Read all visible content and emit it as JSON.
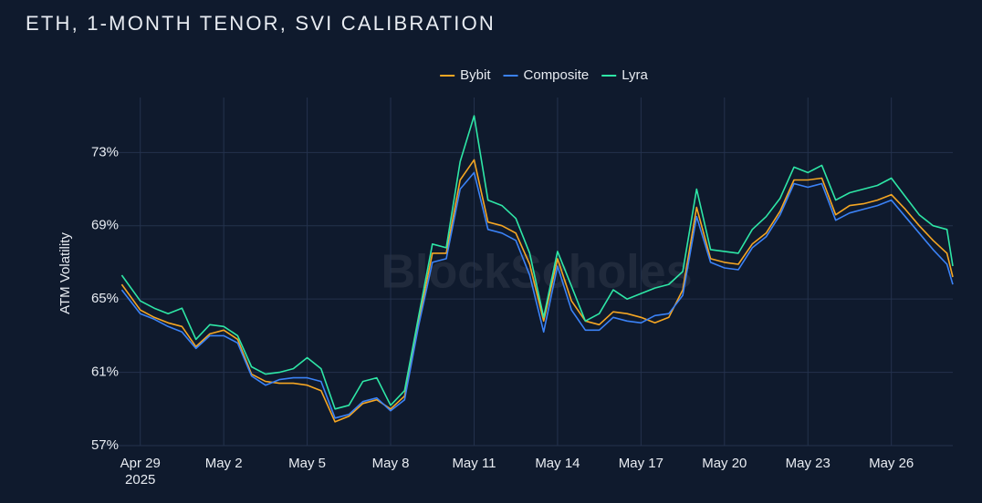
{
  "chart_data": {
    "type": "line",
    "title": "ETH, 1-MONTH TENOR, SVI CALIBRATION",
    "y_label": "ATM Volatility",
    "watermark": "BlockScholes",
    "x_year_label": "2025",
    "legend": "top",
    "grid": true,
    "xlim": [
      "2025-04-27T12:00",
      "2025-05-28T05:00"
    ],
    "xticks": [
      {
        "value": "2025-04-29T00:00",
        "label": "Apr 29"
      },
      {
        "value": "2025-05-02T00:00",
        "label": "May 2"
      },
      {
        "value": "2025-05-05T00:00",
        "label": "May 5"
      },
      {
        "value": "2025-05-08T00:00",
        "label": "May 8"
      },
      {
        "value": "2025-05-11T00:00",
        "label": "May 11"
      },
      {
        "value": "2025-05-14T00:00",
        "label": "May 14"
      },
      {
        "value": "2025-05-17T00:00",
        "label": "May 17"
      },
      {
        "value": "2025-05-20T00:00",
        "label": "May 20"
      },
      {
        "value": "2025-05-23T00:00",
        "label": "May 23"
      },
      {
        "value": "2025-05-26T00:00",
        "label": "May 26"
      }
    ],
    "ylim": [
      57,
      76
    ],
    "yticks": [
      {
        "value": 57,
        "label": "57%"
      },
      {
        "value": 61,
        "label": "61%"
      },
      {
        "value": 65,
        "label": "65%"
      },
      {
        "value": 69,
        "label": "69%"
      },
      {
        "value": 73,
        "label": "73%"
      }
    ],
    "x": [
      "2025-04-28T08:00",
      "2025-04-29T00:00",
      "2025-04-29T12:00",
      "2025-04-30T00:00",
      "2025-04-30T12:00",
      "2025-05-01T00:00",
      "2025-05-01T12:00",
      "2025-05-02T00:00",
      "2025-05-02T12:00",
      "2025-05-03T00:00",
      "2025-05-03T12:00",
      "2025-05-04T00:00",
      "2025-05-04T12:00",
      "2025-05-05T00:00",
      "2025-05-05T12:00",
      "2025-05-06T00:00",
      "2025-05-06T12:00",
      "2025-05-07T00:00",
      "2025-05-07T12:00",
      "2025-05-08T00:00",
      "2025-05-08T12:00",
      "2025-05-09T00:00",
      "2025-05-09T12:00",
      "2025-05-10T00:00",
      "2025-05-10T12:00",
      "2025-05-11T00:00",
      "2025-05-11T12:00",
      "2025-05-12T00:00",
      "2025-05-12T12:00",
      "2025-05-13T00:00",
      "2025-05-13T12:00",
      "2025-05-14T00:00",
      "2025-05-14T12:00",
      "2025-05-15T00:00",
      "2025-05-15T12:00",
      "2025-05-16T00:00",
      "2025-05-16T12:00",
      "2025-05-17T00:00",
      "2025-05-17T12:00",
      "2025-05-18T00:00",
      "2025-05-18T12:00",
      "2025-05-19T00:00",
      "2025-05-19T12:00",
      "2025-05-20T00:00",
      "2025-05-20T12:00",
      "2025-05-21T00:00",
      "2025-05-21T12:00",
      "2025-05-22T00:00",
      "2025-05-22T12:00",
      "2025-05-23T00:00",
      "2025-05-23T12:00",
      "2025-05-24T00:00",
      "2025-05-24T12:00",
      "2025-05-25T00:00",
      "2025-05-25T12:00",
      "2025-05-26T00:00",
      "2025-05-26T12:00",
      "2025-05-27T00:00",
      "2025-05-27T12:00",
      "2025-05-28T00:00",
      "2025-05-28T05:00"
    ],
    "series": [
      {
        "name": "Bybit",
        "color": "#f5a623",
        "values": [
          65.8,
          64.4,
          64.0,
          63.7,
          63.5,
          62.4,
          63.1,
          63.3,
          62.8,
          60.9,
          60.5,
          60.4,
          60.4,
          60.3,
          60.0,
          58.3,
          58.6,
          59.3,
          59.5,
          59.0,
          59.7,
          63.7,
          67.5,
          67.5,
          71.5,
          72.6,
          69.2,
          69.0,
          68.6,
          66.9,
          63.8,
          67.2,
          64.9,
          63.8,
          63.6,
          64.3,
          64.2,
          64.0,
          63.7,
          64.0,
          65.5,
          70.0,
          67.2,
          67.0,
          66.9,
          68.0,
          68.6,
          69.8,
          71.5,
          71.5,
          71.6,
          69.6,
          70.1,
          70.2,
          70.4,
          70.7,
          69.9,
          69.0,
          68.2,
          67.5,
          66.2
        ]
      },
      {
        "name": "Composite",
        "color": "#3b82f6",
        "values": [
          65.5,
          64.2,
          63.9,
          63.5,
          63.2,
          62.3,
          63.0,
          63.0,
          62.6,
          60.8,
          60.3,
          60.6,
          60.7,
          60.7,
          60.5,
          58.5,
          58.7,
          59.4,
          59.6,
          58.9,
          59.5,
          63.5,
          67.0,
          67.2,
          71.0,
          71.9,
          68.8,
          68.6,
          68.2,
          66.3,
          63.2,
          66.8,
          64.4,
          63.3,
          63.3,
          64.0,
          63.8,
          63.7,
          64.1,
          64.2,
          65.2,
          69.5,
          67.0,
          66.7,
          66.6,
          67.8,
          68.4,
          69.6,
          71.3,
          71.1,
          71.3,
          69.3,
          69.7,
          69.9,
          70.1,
          70.4,
          69.5,
          68.6,
          67.7,
          66.9,
          65.8
        ]
      },
      {
        "name": "Lyra",
        "color": "#2ee6a6",
        "values": [
          66.3,
          64.9,
          64.5,
          64.2,
          64.5,
          62.8,
          63.6,
          63.5,
          63.0,
          61.3,
          60.9,
          61.0,
          61.2,
          61.8,
          61.2,
          59.0,
          59.2,
          60.5,
          60.7,
          59.2,
          60.0,
          64.0,
          68.0,
          67.8,
          72.5,
          75.0,
          70.4,
          70.1,
          69.4,
          67.5,
          64.0,
          67.6,
          65.7,
          63.8,
          64.2,
          65.5,
          65.0,
          65.3,
          65.6,
          65.8,
          66.5,
          71.0,
          67.7,
          67.6,
          67.5,
          68.8,
          69.5,
          70.5,
          72.2,
          71.9,
          72.3,
          70.4,
          70.8,
          71.0,
          71.2,
          71.6,
          70.6,
          69.6,
          69.0,
          68.8,
          66.8
        ]
      }
    ]
  }
}
